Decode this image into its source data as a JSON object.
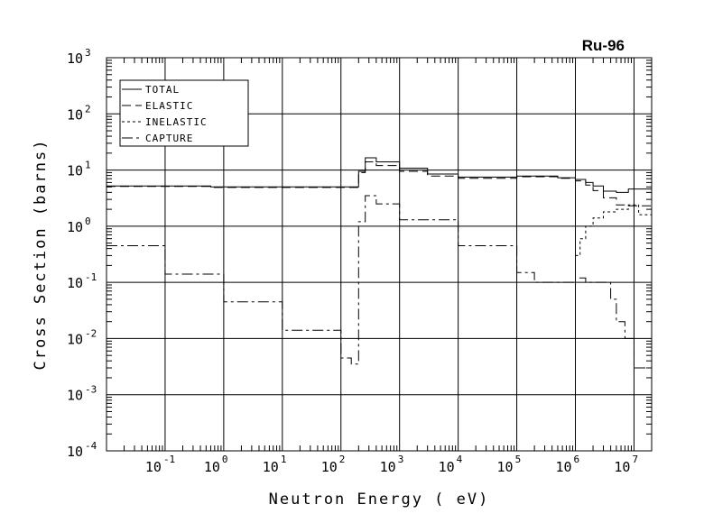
{
  "chart_data": {
    "type": "line",
    "title": "Ru-96",
    "xlabel": "Neutron Energy ( eV)",
    "ylabel": "Cross Section (barns)",
    "x_scale": "log",
    "y_scale": "log",
    "xlim": [
      0.01,
      20000000
    ],
    "ylim": [
      0.0001,
      1000
    ],
    "grid": true,
    "legend_position": "top-left",
    "x_ticks": [
      {
        "base": "10",
        "exp": "-1",
        "value": 0.1
      },
      {
        "base": "10",
        "exp": "0",
        "value": 1
      },
      {
        "base": "10",
        "exp": "1",
        "value": 10
      },
      {
        "base": "10",
        "exp": "2",
        "value": 100
      },
      {
        "base": "10",
        "exp": "3",
        "value": 1000
      },
      {
        "base": "10",
        "exp": "4",
        "value": 10000
      },
      {
        "base": "10",
        "exp": "5",
        "value": 100000
      },
      {
        "base": "10",
        "exp": "6",
        "value": 1000000
      },
      {
        "base": "10",
        "exp": "7",
        "value": 10000000
      }
    ],
    "y_ticks": [
      {
        "base": "10",
        "exp": "-4",
        "value": 0.0001
      },
      {
        "base": "10",
        "exp": "-3",
        "value": 0.001
      },
      {
        "base": "10",
        "exp": "-2",
        "value": 0.01
      },
      {
        "base": "10",
        "exp": "-1",
        "value": 0.1
      },
      {
        "base": "10",
        "exp": "0",
        "value": 1
      },
      {
        "base": "10",
        "exp": "1",
        "value": 10
      },
      {
        "base": "10",
        "exp": "2",
        "value": 100
      },
      {
        "base": "10",
        "exp": "3",
        "value": 1000
      }
    ],
    "series": [
      {
        "name": "TOTAL",
        "dash": "",
        "x": [
          0.01,
          0.6,
          150,
          200,
          260,
          400,
          1000,
          3000,
          10000,
          100000,
          500000,
          1000000,
          1500000,
          2000000,
          3000000,
          5000000,
          8000000,
          20000000
        ],
        "y": [
          5.2,
          5.0,
          5.0,
          9.5,
          16.5,
          14.0,
          10.8,
          8.5,
          7.5,
          7.8,
          7.3,
          6.8,
          6.0,
          5.2,
          4.2,
          4.0,
          4.6,
          4.3
        ]
      },
      {
        "name": "ELASTIC",
        "dash": "10,5",
        "x": [
          0.01,
          0.6,
          150,
          200,
          260,
          400,
          1000,
          3000,
          10000,
          100000,
          500000,
          1000000,
          1500000,
          2000000,
          3000000,
          5000000,
          8000000,
          20000000
        ],
        "y": [
          5.1,
          4.9,
          4.9,
          9.0,
          14.0,
          12.0,
          9.5,
          7.8,
          7.1,
          7.6,
          7.1,
          6.4,
          5.4,
          4.3,
          3.2,
          2.4,
          2.3,
          2.0
        ]
      },
      {
        "name": "INELASTIC",
        "dash": "3,3",
        "x": [
          1000000,
          1200000,
          1500000,
          2000000,
          3000000,
          5000000,
          8000000,
          12000000,
          20000000
        ],
        "y": [
          0.3,
          0.6,
          1.0,
          1.4,
          1.8,
          2.0,
          2.4,
          1.6,
          0.6
        ]
      },
      {
        "name": "CAPTURE",
        "dash": "12,4,3,4",
        "x": [
          0.01,
          0.1,
          1,
          10,
          100,
          150,
          180,
          200,
          260,
          400,
          1000,
          10000,
          100000,
          200000,
          300000,
          1000000,
          1500000,
          3000000,
          4000000,
          5000000,
          7000000,
          10000000,
          20000000
        ],
        "y": [
          0.45,
          0.14,
          0.045,
          0.014,
          0.0045,
          0.0035,
          0.0035,
          1.2,
          3.5,
          2.5,
          1.3,
          0.45,
          0.15,
          0.1,
          0.1,
          0.12,
          0.1,
          0.1,
          0.05,
          0.02,
          0.01,
          0.003,
          0.001
        ]
      }
    ]
  }
}
